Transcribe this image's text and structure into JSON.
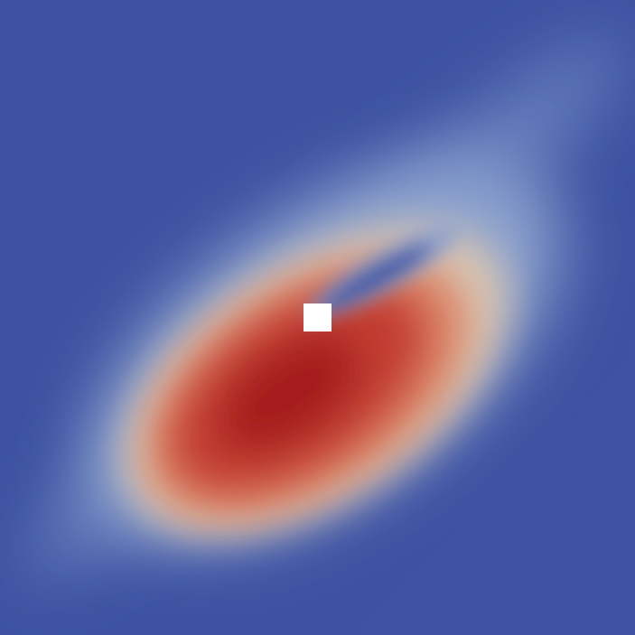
{
  "scene": {
    "kind": "2d scalar field visualization",
    "colormap": "cool-to-warm",
    "colors": {
      "low": "#3b4fa0",
      "low_mid": "#7f98c8",
      "mid": "#d9c3ae",
      "high_mid": "#d7694a",
      "high": "#a31b1e",
      "obstacle": "#ffffff"
    }
  }
}
